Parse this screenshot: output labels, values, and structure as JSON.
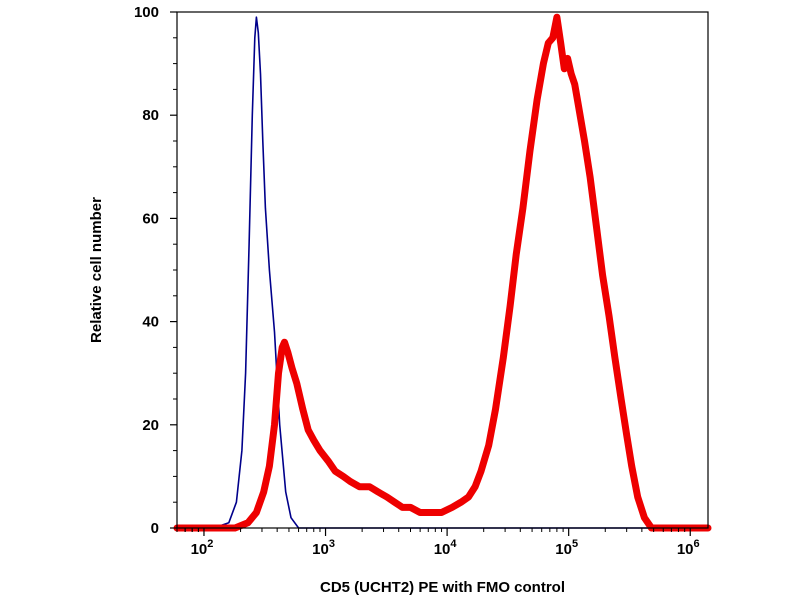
{
  "chart_data": {
    "type": "line",
    "title": "",
    "xlabel": "CD5 (UCHT2) PE with FMO control",
    "ylabel": "Relative cell number",
    "x_scale": "log",
    "xlim": [
      60,
      1400000
    ],
    "ylim": [
      0,
      100
    ],
    "grid": false,
    "legend": "none",
    "x_ticks": [
      {
        "value": 100,
        "base": "10",
        "exp": "2"
      },
      {
        "value": 1000,
        "base": "10",
        "exp": "3"
      },
      {
        "value": 10000,
        "base": "10",
        "exp": "4"
      },
      {
        "value": 100000,
        "base": "10",
        "exp": "5"
      },
      {
        "value": 1000000,
        "base": "10",
        "exp": "6"
      }
    ],
    "y_ticks": [
      {
        "value": 0,
        "label": "0"
      },
      {
        "value": 20,
        "label": "20"
      },
      {
        "value": 40,
        "label": "40"
      },
      {
        "value": 60,
        "label": "60"
      },
      {
        "value": 80,
        "label": "80"
      },
      {
        "value": 100,
        "label": "100"
      }
    ],
    "series": [
      {
        "color": "#00008b",
        "points": [
          [
            60,
            0
          ],
          [
            120,
            0
          ],
          [
            160,
            1
          ],
          [
            185,
            5
          ],
          [
            205,
            15
          ],
          [
            220,
            30
          ],
          [
            235,
            55
          ],
          [
            250,
            80
          ],
          [
            262,
            95
          ],
          [
            270,
            99
          ],
          [
            280,
            96
          ],
          [
            292,
            88
          ],
          [
            305,
            75
          ],
          [
            320,
            62
          ],
          [
            345,
            50
          ],
          [
            380,
            38
          ],
          [
            420,
            20
          ],
          [
            470,
            7
          ],
          [
            520,
            2
          ],
          [
            600,
            0
          ],
          [
            1400000,
            0
          ]
        ]
      },
      {
        "color": "#ee0000",
        "points": [
          [
            60,
            0
          ],
          [
            180,
            0
          ],
          [
            230,
            1
          ],
          [
            270,
            3
          ],
          [
            310,
            7
          ],
          [
            345,
            12
          ],
          [
            380,
            20
          ],
          [
            410,
            30
          ],
          [
            440,
            35
          ],
          [
            460,
            36
          ],
          [
            490,
            34
          ],
          [
            530,
            31
          ],
          [
            580,
            28
          ],
          [
            650,
            23
          ],
          [
            720,
            19
          ],
          [
            800,
            17
          ],
          [
            900,
            15
          ],
          [
            1050,
            13
          ],
          [
            1200,
            11
          ],
          [
            1400,
            10
          ],
          [
            1600,
            9
          ],
          [
            1900,
            8
          ],
          [
            2300,
            8
          ],
          [
            2700,
            7
          ],
          [
            3200,
            6
          ],
          [
            3700,
            5
          ],
          [
            4300,
            4
          ],
          [
            5000,
            4
          ],
          [
            6000,
            3
          ],
          [
            7000,
            3
          ],
          [
            8000,
            3
          ],
          [
            9000,
            3
          ],
          [
            11000,
            4
          ],
          [
            13000,
            5
          ],
          [
            15000,
            6
          ],
          [
            17000,
            8
          ],
          [
            19000,
            11
          ],
          [
            22000,
            16
          ],
          [
            25000,
            23
          ],
          [
            29000,
            33
          ],
          [
            33000,
            43
          ],
          [
            37000,
            53
          ],
          [
            42000,
            62
          ],
          [
            48000,
            73
          ],
          [
            55000,
            83
          ],
          [
            62000,
            90
          ],
          [
            68000,
            94
          ],
          [
            74000,
            95
          ],
          [
            80000,
            99
          ],
          [
            86000,
            94
          ],
          [
            92000,
            89
          ],
          [
            98000,
            91
          ],
          [
            105000,
            88
          ],
          [
            112000,
            86
          ],
          [
            120000,
            82
          ],
          [
            135000,
            75
          ],
          [
            150000,
            68
          ],
          [
            170000,
            58
          ],
          [
            190000,
            49
          ],
          [
            215000,
            41
          ],
          [
            240000,
            33
          ],
          [
            270000,
            25
          ],
          [
            300000,
            18
          ],
          [
            330000,
            12
          ],
          [
            370000,
            6
          ],
          [
            420000,
            2
          ],
          [
            480000,
            0
          ],
          [
            1400000,
            0
          ]
        ]
      }
    ]
  }
}
